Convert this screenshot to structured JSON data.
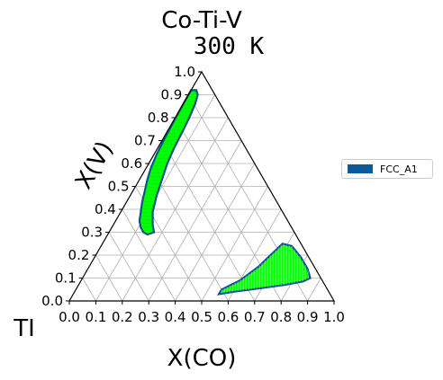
{
  "chart_data": {
    "type": "scatter",
    "projection": "ternary",
    "title": "Co-Ti-V",
    "subtitle": "300 K",
    "xlabel": "X(CO)",
    "ylabel": "X(V)",
    "corner_label": "TI",
    "xlim": [
      0,
      1
    ],
    "ylim": [
      0,
      1
    ],
    "grid": true,
    "x_ticks": [
      "0.0",
      "0.1",
      "0.2",
      "0.3",
      "0.4",
      "0.5",
      "0.6",
      "0.7",
      "0.8",
      "0.9",
      "1.0"
    ],
    "y_ticks": [
      "0.0",
      "0.1",
      "0.2",
      "0.3",
      "0.4",
      "0.5",
      "0.6",
      "0.7",
      "0.8",
      "0.9",
      "1.0"
    ],
    "legend": {
      "position": "right",
      "entries": [
        "FCC_A1"
      ]
    },
    "colors": {
      "fill": "#00ff00",
      "outline": "#0a4f8c",
      "legend_swatch": "#0a5a99"
    },
    "series": [
      {
        "name": "FCC_A1",
        "regions": [
          {
            "boundary": [
              [
                0.0,
                0.92
              ],
              [
                0.02,
                0.92
              ],
              [
                0.035,
                0.9
              ],
              [
                0.045,
                0.86
              ],
              [
                0.053,
                0.8
              ],
              [
                0.058,
                0.74
              ],
              [
                0.062,
                0.67
              ],
              [
                0.07,
                0.6
              ],
              [
                0.085,
                0.53
              ],
              [
                0.1,
                0.46
              ],
              [
                0.12,
                0.39
              ],
              [
                0.15,
                0.33
              ],
              [
                0.17,
                0.3
              ],
              [
                0.15,
                0.29
              ],
              [
                0.13,
                0.3
              ],
              [
                0.11,
                0.32
              ],
              [
                0.09,
                0.35
              ],
              [
                0.075,
                0.39
              ],
              [
                0.06,
                0.43
              ],
              [
                0.045,
                0.48
              ],
              [
                0.03,
                0.53
              ],
              [
                0.018,
                0.58
              ],
              [
                0.01,
                0.64
              ],
              [
                0.005,
                0.72
              ],
              [
                0.002,
                0.8
              ],
              [
                0.0,
                0.88
              ],
              [
                0.0,
                0.92
              ]
            ]
          },
          {
            "boundary": [
              [
                0.55,
                0.05
              ],
              [
                0.6,
                0.09
              ],
              [
                0.64,
                0.15
              ],
              [
                0.66,
                0.2
              ],
              [
                0.68,
                0.25
              ],
              [
                0.72,
                0.24
              ],
              [
                0.78,
                0.19
              ],
              [
                0.83,
                0.14
              ],
              [
                0.86,
                0.1
              ],
              [
                0.84,
                0.085
              ],
              [
                0.78,
                0.07
              ],
              [
                0.72,
                0.06
              ],
              [
                0.66,
                0.05
              ],
              [
                0.6,
                0.04
              ],
              [
                0.55,
                0.03
              ],
              [
                0.55,
                0.05
              ]
            ]
          }
        ]
      }
    ]
  }
}
